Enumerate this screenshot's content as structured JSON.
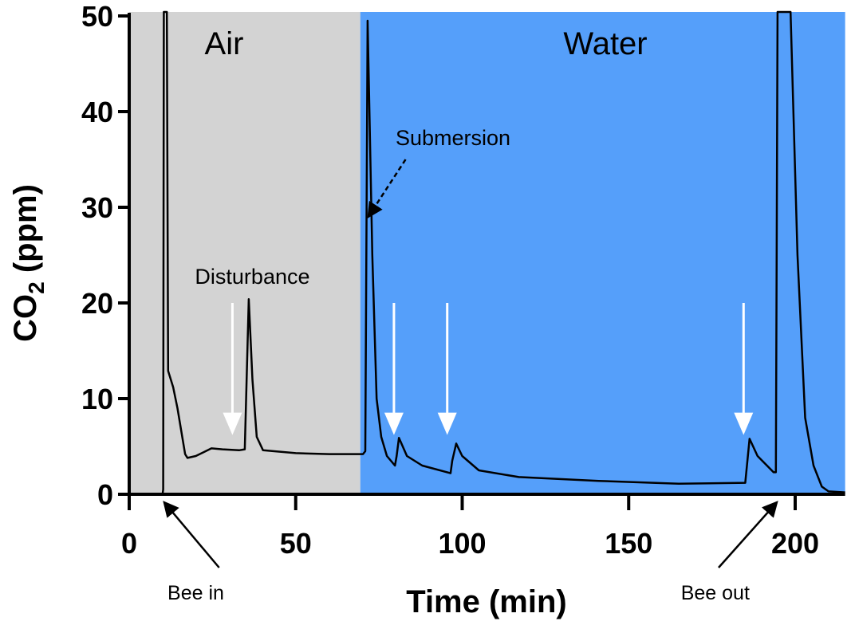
{
  "chart_data": {
    "type": "line",
    "title": "",
    "xlabel": "Time (min)",
    "ylabel_main": "CO",
    "ylabel_sub": "2",
    "ylabel_tail": " (ppm)",
    "xlim": [
      0,
      215
    ],
    "ylim": [
      0,
      50
    ],
    "xticks": [
      0,
      50,
      100,
      150,
      200
    ],
    "yticks": [
      0,
      10,
      20,
      30,
      40,
      50
    ],
    "grid": false,
    "regions": [
      {
        "label": "Air",
        "x": [
          0,
          69.4
        ],
        "color": "#d3d3d3"
      },
      {
        "label": "Water",
        "x": [
          69.4,
          215
        ],
        "color": "#559ffa"
      }
    ],
    "series": [
      {
        "color": "#000000",
        "points": [
          [
            0,
            0
          ],
          [
            10,
            0
          ],
          [
            10.2,
            0.5
          ],
          [
            10.4,
            55
          ],
          [
            11.3,
            55
          ],
          [
            11.7,
            12.9
          ],
          [
            13.2,
            11.2
          ],
          [
            14.5,
            9
          ],
          [
            16.8,
            4.2
          ],
          [
            17.5,
            3.8
          ],
          [
            20,
            4.0
          ],
          [
            24.7,
            4.8
          ],
          [
            28,
            4.7
          ],
          [
            33,
            4.6
          ],
          [
            34.7,
            4.7
          ],
          [
            35.9,
            20.4
          ],
          [
            37,
            12
          ],
          [
            38.3,
            6
          ],
          [
            40.2,
            4.6
          ],
          [
            50,
            4.3
          ],
          [
            60,
            4.2
          ],
          [
            70.2,
            4.2
          ],
          [
            70.9,
            4.5
          ],
          [
            71.6,
            49.5
          ],
          [
            73,
            25
          ],
          [
            74.3,
            10
          ],
          [
            75.7,
            6
          ],
          [
            77.4,
            4
          ],
          [
            79.8,
            3
          ],
          [
            80.3,
            4
          ],
          [
            81,
            5.9
          ],
          [
            83.4,
            4
          ],
          [
            88,
            3
          ],
          [
            96.5,
            2.2
          ],
          [
            97,
            3.5
          ],
          [
            98.2,
            5.3
          ],
          [
            100,
            4
          ],
          [
            105,
            2.5
          ],
          [
            117,
            1.8
          ],
          [
            141,
            1.4
          ],
          [
            165,
            1.1
          ],
          [
            185,
            1.2
          ],
          [
            186.3,
            5.8
          ],
          [
            188.7,
            4
          ],
          [
            193.5,
            2.3
          ],
          [
            194.2,
            2.3
          ],
          [
            194.7,
            55
          ],
          [
            198.6,
            55
          ],
          [
            200.7,
            25
          ],
          [
            203,
            8
          ],
          [
            205.5,
            3
          ],
          [
            208,
            0.8
          ],
          [
            210,
            0.3
          ],
          [
            215,
            0.2
          ]
        ]
      }
    ],
    "annotations": {
      "submersion": {
        "text": "Submersion",
        "x": 80,
        "y": 36.5,
        "arrow_to": [
          71.8,
          29
        ]
      },
      "disturbance": {
        "text": "Disturbance",
        "x": 37,
        "y": 22
      },
      "bee_in": {
        "text": "Bee in",
        "x": 20,
        "arrow_to": [
          10,
          0
        ]
      },
      "bee_out": {
        "text": "Bee out",
        "x": 176,
        "arrow_to": [
          195,
          0
        ]
      },
      "event_arrows_x": [
        31,
        79.5,
        95.5,
        184.5
      ],
      "event_arrow_from_y": 20,
      "event_arrow_to_y": 6.2,
      "event_arrow_color": "#ffffff"
    }
  }
}
